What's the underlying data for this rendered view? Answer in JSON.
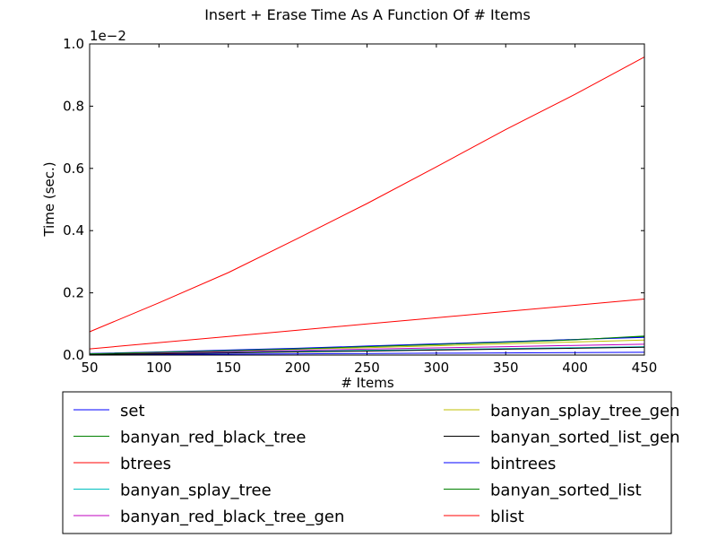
{
  "chart_data": {
    "type": "line",
    "title": "Insert + Erase Time As A Function Of # Items",
    "xlabel": "# Items",
    "ylabel": "Time (sec.)",
    "y_scale_note": "1e−2",
    "xlim": [
      50,
      450
    ],
    "ylim": [
      0,
      1.0
    ],
    "x_ticks": [
      50,
      100,
      150,
      200,
      250,
      300,
      350,
      400,
      450
    ],
    "y_ticks": [
      0.0,
      0.2,
      0.4,
      0.6,
      0.8,
      1.0
    ],
    "x_tick_labels": [
      "50",
      "100",
      "150",
      "200",
      "250",
      "300",
      "350",
      "400",
      "450"
    ],
    "y_tick_labels": [
      "0.0",
      "0.2",
      "0.4",
      "0.6",
      "0.8",
      "1.0"
    ],
    "grid": false,
    "legend_position": "below-plot",
    "x": [
      50,
      100,
      150,
      200,
      250,
      300,
      350,
      400,
      450
    ],
    "series": [
      {
        "name": "set",
        "color": "#0000ff",
        "values": [
          0.001,
          0.002,
          0.003,
          0.004,
          0.005,
          0.006,
          0.007,
          0.008,
          0.009
        ]
      },
      {
        "name": "banyan_red_black_tree",
        "color": "#008000",
        "values": [
          0.004,
          0.009,
          0.015,
          0.021,
          0.028,
          0.035,
          0.042,
          0.05,
          0.059
        ]
      },
      {
        "name": "btrees",
        "color": "#ff0000",
        "values": [
          0.02,
          0.04,
          0.06,
          0.08,
          0.1,
          0.12,
          0.14,
          0.16,
          0.18
        ]
      },
      {
        "name": "banyan_splay_tree",
        "color": "#00bfbf",
        "values": [
          0.003,
          0.006,
          0.009,
          0.012,
          0.015,
          0.018,
          0.021,
          0.024,
          0.027
        ]
      },
      {
        "name": "banyan_red_black_tree_gen",
        "color": "#bf00bf",
        "values": [
          0.003,
          0.007,
          0.011,
          0.015,
          0.019,
          0.023,
          0.027,
          0.031,
          0.035
        ]
      },
      {
        "name": "banyan_splay_tree_gen",
        "color": "#bfbf00",
        "values": [
          0.004,
          0.009,
          0.014,
          0.019,
          0.024,
          0.03,
          0.036,
          0.042,
          0.048
        ]
      },
      {
        "name": "banyan_sorted_list_gen",
        "color": "#000000",
        "values": [
          0.002,
          0.004,
          0.007,
          0.01,
          0.013,
          0.016,
          0.019,
          0.022,
          0.025
        ]
      },
      {
        "name": "bintrees",
        "color": "#0000ff",
        "values": [
          0.005,
          0.01,
          0.016,
          0.022,
          0.029,
          0.036,
          0.043,
          0.05,
          0.057
        ]
      },
      {
        "name": "banyan_sorted_list",
        "color": "#008000",
        "values": [
          0.004,
          0.009,
          0.014,
          0.02,
          0.027,
          0.034,
          0.041,
          0.049,
          0.061
        ]
      },
      {
        "name": "blist",
        "color": "#ff0000",
        "values": [
          0.075,
          0.168,
          0.265,
          0.375,
          0.487,
          0.605,
          0.725,
          0.838,
          0.958
        ]
      }
    ]
  }
}
